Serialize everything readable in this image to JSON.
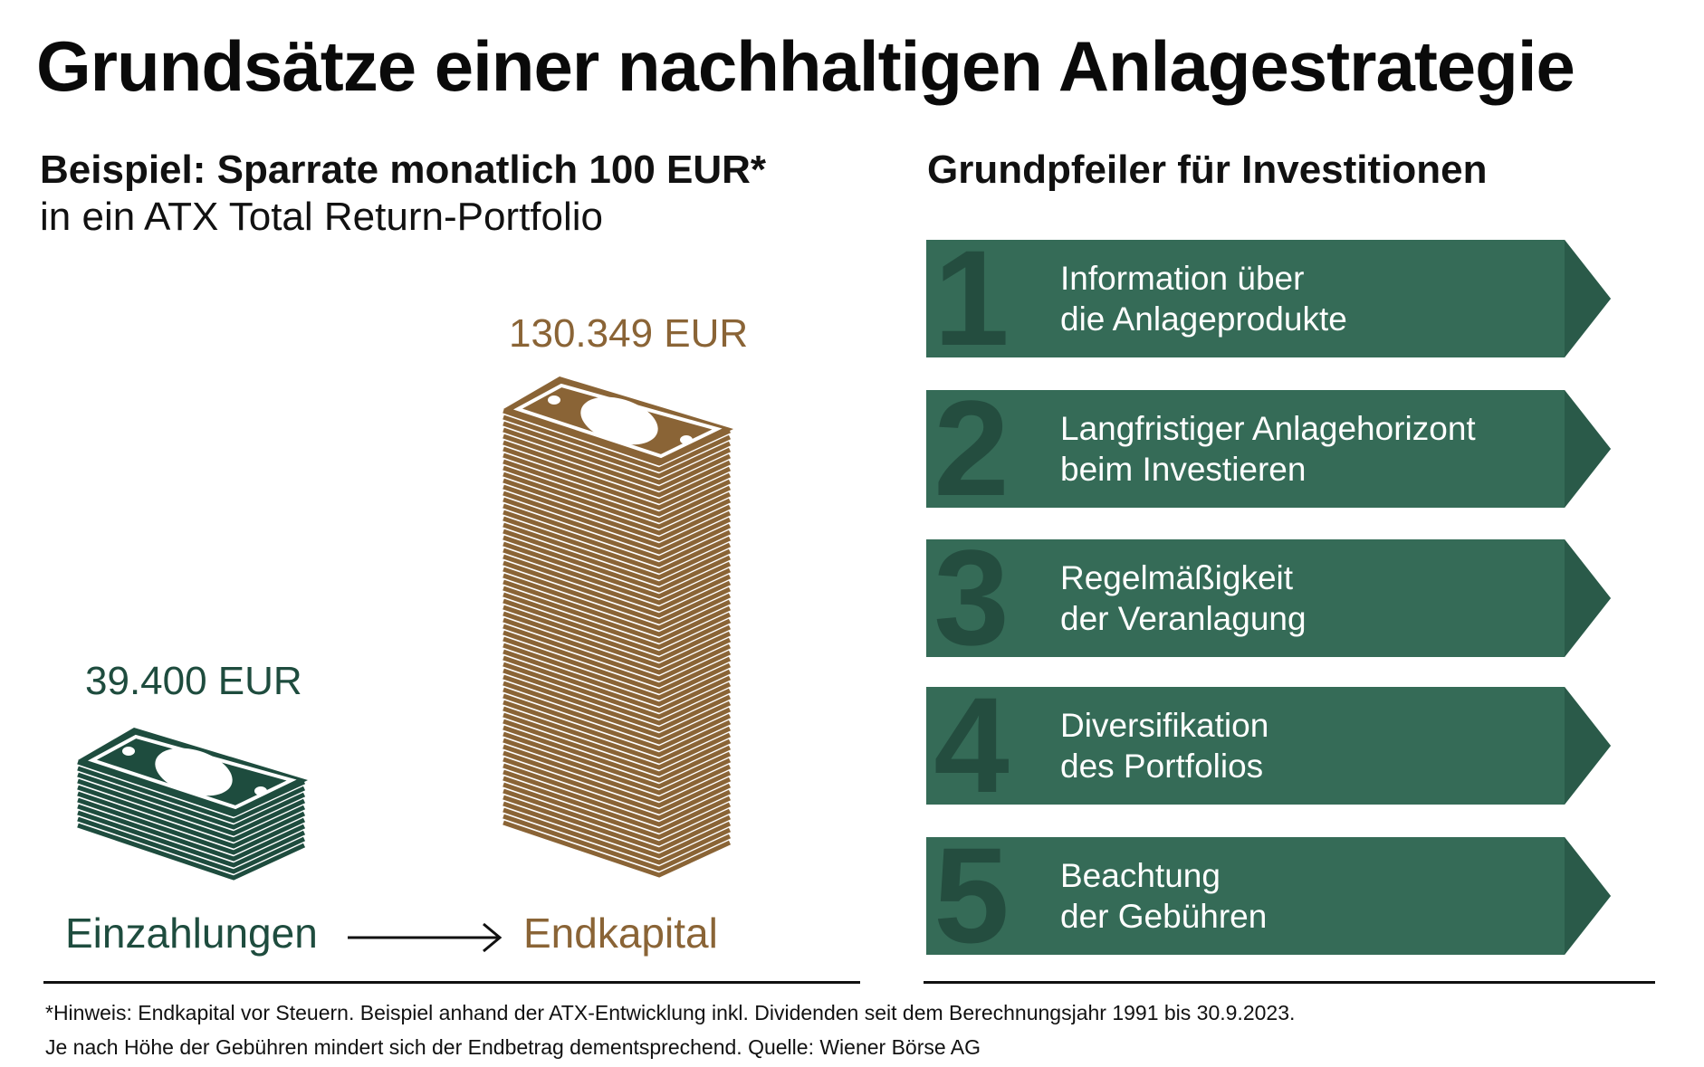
{
  "title": "Grundsätze einer nachhaltigen Anlagestrategie",
  "left": {
    "heading_bold": "Beispiel: Sparrate monatlich 100 EUR*",
    "heading_regular": "in ein ATX Total Return-Portfolio",
    "deposits_amount": "39.400 EUR",
    "deposits_label": "Einzahlungen",
    "final_amount": "130.349 EUR",
    "final_label": "Endkapital"
  },
  "right": {
    "heading": "Grundpfeiler für Investitionen",
    "pillars": [
      {
        "number": "1",
        "line1": "Information über",
        "line2": "die Anlageprodukte"
      },
      {
        "number": "2",
        "line1": "Langfristiger Anlagehorizont",
        "line2": "beim Investieren"
      },
      {
        "number": "3",
        "line1": "Regelmäßigkeit",
        "line2": "der Veranlagung"
      },
      {
        "number": "4",
        "line1": "Diversifikation",
        "line2": "des Portfolios"
      },
      {
        "number": "5",
        "line1": "Beachtung",
        "line2": "der Gebühren"
      }
    ]
  },
  "footnote": {
    "line1": "*Hinweis: Endkapital vor Steuern. Beispiel anhand der ATX-Entwicklung inkl. Dividenden seit dem Berechnungsjahr 1991 bis 30.9.2023.",
    "line2": "Je nach Höhe der Gebühren mindert sich der Endbetrag dementsprechend. Quelle: Wiener Börse AG"
  },
  "colors": {
    "green": "#1e4c3e",
    "pillar_green": "#356b57",
    "pillar_arrow": "#2a5a49",
    "brown": "#8a6436"
  },
  "icons": {
    "deposits_stack": "money-stack-icon",
    "final_stack": "money-stack-icon",
    "arrow": "arrow-right-icon"
  }
}
